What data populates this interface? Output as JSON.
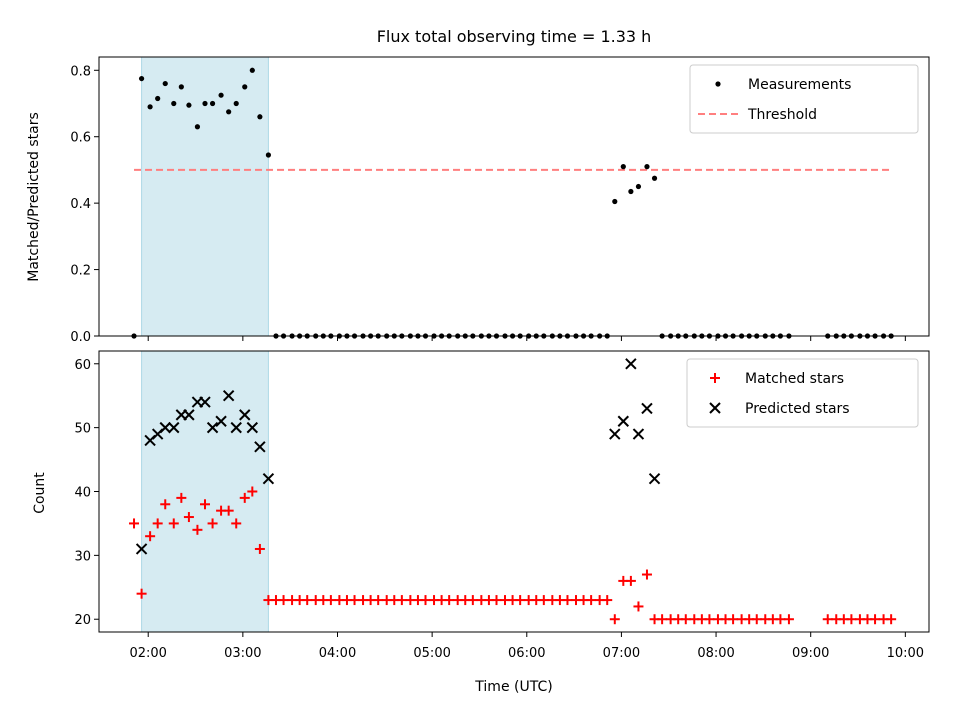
{
  "title": "Flux total observing time = 1.33 h",
  "colors": {
    "shade": "#add8e6",
    "measurement": "#000000",
    "threshold": "#ff7f7f",
    "matched": "#ff0000",
    "predicted": "#000000"
  },
  "chart_data": [
    {
      "type": "scatter",
      "panel": "top",
      "ylabel": "Matched/Predicted stars",
      "xlabel": "",
      "xlim": [
        1.48,
        10.25
      ],
      "ylim": [
        0,
        0.84
      ],
      "yticks": [
        0,
        0.2,
        0.4,
        0.6,
        0.8
      ],
      "ytick_labels": [
        "0.0",
        "0.2",
        "0.4",
        "0.6",
        "0.8"
      ],
      "shaded_interval": [
        1.93,
        3.27
      ],
      "legend_position": "top-right",
      "threshold": {
        "name": "Threshold",
        "value": 0.5,
        "x_range": [
          1.85,
          9.85
        ]
      },
      "series": [
        {
          "name": "Measurements",
          "x": [
            1.85,
            1.93,
            2.02,
            2.1,
            2.18,
            2.27,
            2.35,
            2.43,
            2.52,
            2.6,
            2.68,
            2.77,
            2.85,
            2.93,
            3.02,
            3.1,
            3.18,
            3.27,
            3.35,
            3.43,
            3.52,
            3.6,
            3.68,
            3.77,
            3.85,
            3.93,
            4.02,
            4.1,
            4.18,
            4.27,
            4.35,
            4.43,
            4.52,
            4.6,
            4.68,
            4.77,
            4.85,
            4.93,
            5.02,
            5.1,
            5.18,
            5.27,
            5.35,
            5.43,
            5.52,
            5.6,
            5.68,
            5.77,
            5.85,
            5.93,
            6.02,
            6.1,
            6.18,
            6.27,
            6.35,
            6.43,
            6.52,
            6.6,
            6.68,
            6.77,
            6.85,
            6.93,
            7.02,
            7.1,
            7.18,
            7.27,
            7.35,
            7.43,
            7.52,
            7.6,
            7.68,
            7.77,
            7.85,
            7.93,
            8.02,
            8.1,
            8.18,
            8.27,
            8.35,
            8.43,
            8.52,
            8.6,
            8.68,
            8.77,
            9.18,
            9.27,
            9.35,
            9.43,
            9.52,
            9.6,
            9.68,
            9.77,
            9.85
          ],
          "y": [
            0.0,
            0.775,
            0.69,
            0.715,
            0.76,
            0.7,
            0.75,
            0.695,
            0.63,
            0.7,
            0.7,
            0.725,
            0.675,
            0.7,
            0.75,
            0.8,
            0.66,
            0.545,
            0,
            0,
            0,
            0,
            0,
            0,
            0,
            0,
            0,
            0,
            0,
            0,
            0,
            0,
            0,
            0,
            0,
            0,
            0,
            0,
            0,
            0,
            0,
            0,
            0,
            0,
            0,
            0,
            0,
            0,
            0,
            0,
            0,
            0,
            0,
            0,
            0,
            0,
            0,
            0,
            0,
            0,
            0,
            0.405,
            0.51,
            0.435,
            0.45,
            0.51,
            0.475,
            0,
            0,
            0,
            0,
            0,
            0,
            0,
            0,
            0,
            0,
            0,
            0,
            0,
            0,
            0,
            0,
            0,
            0,
            0,
            0,
            0,
            0,
            0,
            0,
            0,
            0
          ]
        }
      ]
    },
    {
      "type": "scatter",
      "panel": "bottom",
      "ylabel": "Count",
      "xlabel": "Time (UTC)",
      "xlim": [
        1.48,
        10.25
      ],
      "ylim": [
        18,
        62
      ],
      "yticks": [
        20,
        30,
        40,
        50,
        60
      ],
      "ytick_labels": [
        "20",
        "30",
        "40",
        "50",
        "60"
      ],
      "xticks": [
        2,
        3,
        4,
        5,
        6,
        7,
        8,
        9,
        10
      ],
      "xtick_labels": [
        "02:00",
        "03:00",
        "04:00",
        "05:00",
        "06:00",
        "07:00",
        "08:00",
        "09:00",
        "10:00"
      ],
      "shaded_interval": [
        1.93,
        3.27
      ],
      "legend_position": "top-right",
      "series": [
        {
          "name": "Matched stars",
          "marker": "plus",
          "x": [
            1.85,
            1.93,
            2.02,
            2.1,
            2.18,
            2.27,
            2.35,
            2.43,
            2.52,
            2.6,
            2.68,
            2.77,
            2.85,
            2.93,
            3.02,
            3.1,
            3.18,
            3.27,
            3.35,
            3.43,
            3.52,
            3.6,
            3.68,
            3.77,
            3.85,
            3.93,
            4.02,
            4.1,
            4.18,
            4.27,
            4.35,
            4.43,
            4.52,
            4.6,
            4.68,
            4.77,
            4.85,
            4.93,
            5.02,
            5.1,
            5.18,
            5.27,
            5.35,
            5.43,
            5.52,
            5.6,
            5.68,
            5.77,
            5.85,
            5.93,
            6.02,
            6.1,
            6.18,
            6.27,
            6.35,
            6.43,
            6.52,
            6.6,
            6.68,
            6.77,
            6.85,
            6.93,
            7.02,
            7.1,
            7.18,
            7.27,
            7.35,
            7.43,
            7.52,
            7.6,
            7.68,
            7.77,
            7.85,
            7.93,
            8.02,
            8.1,
            8.18,
            8.27,
            8.35,
            8.43,
            8.52,
            8.6,
            8.68,
            8.77,
            9.18,
            9.27,
            9.35,
            9.43,
            9.52,
            9.6,
            9.68,
            9.77,
            9.85
          ],
          "y": [
            35,
            24,
            33,
            35,
            38,
            35,
            39,
            36,
            34,
            38,
            35,
            37,
            37,
            35,
            39,
            40,
            31,
            23,
            23,
            23,
            23,
            23,
            23,
            23,
            23,
            23,
            23,
            23,
            23,
            23,
            23,
            23,
            23,
            23,
            23,
            23,
            23,
            23,
            23,
            23,
            23,
            23,
            23,
            23,
            23,
            23,
            23,
            23,
            23,
            23,
            23,
            23,
            23,
            23,
            23,
            23,
            23,
            23,
            23,
            23,
            23,
            20,
            26,
            26,
            22,
            27,
            20,
            20,
            20,
            20,
            20,
            20,
            20,
            20,
            20,
            20,
            20,
            20,
            20,
            20,
            20,
            20,
            20,
            20,
            20,
            20,
            20,
            20,
            20,
            20,
            20,
            20,
            20
          ]
        },
        {
          "name": "Predicted stars",
          "marker": "x",
          "x": [
            1.93,
            2.02,
            2.1,
            2.18,
            2.27,
            2.35,
            2.43,
            2.52,
            2.6,
            2.68,
            2.77,
            2.85,
            2.93,
            3.02,
            3.1,
            3.18,
            3.27,
            6.93,
            7.02,
            7.1,
            7.18,
            7.27,
            7.35
          ],
          "y": [
            31,
            48,
            49,
            50,
            50,
            52,
            52,
            54,
            54,
            50,
            51,
            55,
            50,
            52,
            50,
            47,
            42,
            49,
            51,
            60,
            49,
            53,
            42
          ]
        }
      ]
    }
  ]
}
